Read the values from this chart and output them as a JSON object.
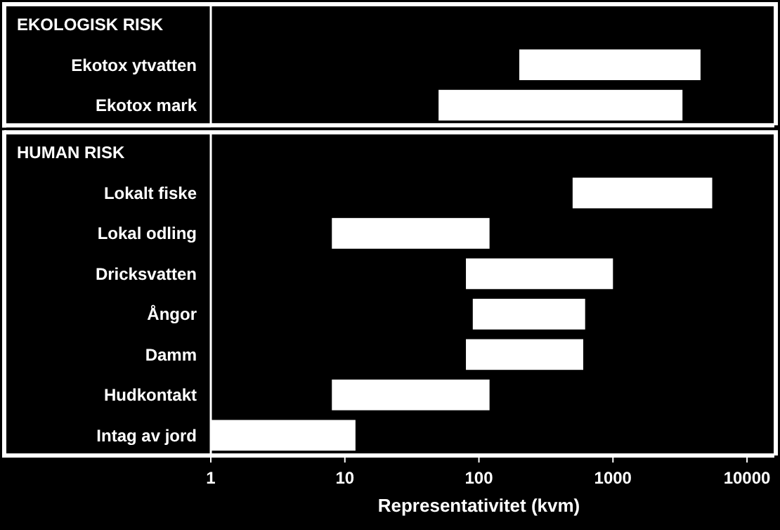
{
  "chart_data": [
    {
      "type": "bar",
      "orientation": "horizontal",
      "title": "EKOLOGISK RISK",
      "categories": [
        "Ekotox ytvatten",
        "Ekotox mark"
      ],
      "base": [
        200,
        50
      ],
      "values": [
        4300,
        3250
      ],
      "color": "#ffffff",
      "log": "x",
      "xlim": [
        1,
        16000
      ],
      "xticks": [
        1,
        10,
        100,
        1000,
        10000
      ],
      "tick_labels": "y"
    },
    {
      "type": "bar",
      "orientation": "horizontal",
      "title": "HUMAN RISK",
      "categories": [
        "Lokalt fiske",
        "Lokal odling",
        "Dricksvatten",
        "Ångor",
        "Damm",
        "Hudkontakt",
        "Intag av jord"
      ],
      "base": [
        500,
        8,
        80,
        90,
        80,
        8,
        1
      ],
      "values": [
        5000,
        112,
        920,
        530,
        520,
        112,
        11
      ],
      "color": "#ffffff",
      "log": "x",
      "xlim": [
        1,
        16000
      ],
      "xticks": [
        1,
        10,
        100,
        1000,
        10000
      ],
      "xlabel": "Representativitet (kvm)"
    }
  ]
}
